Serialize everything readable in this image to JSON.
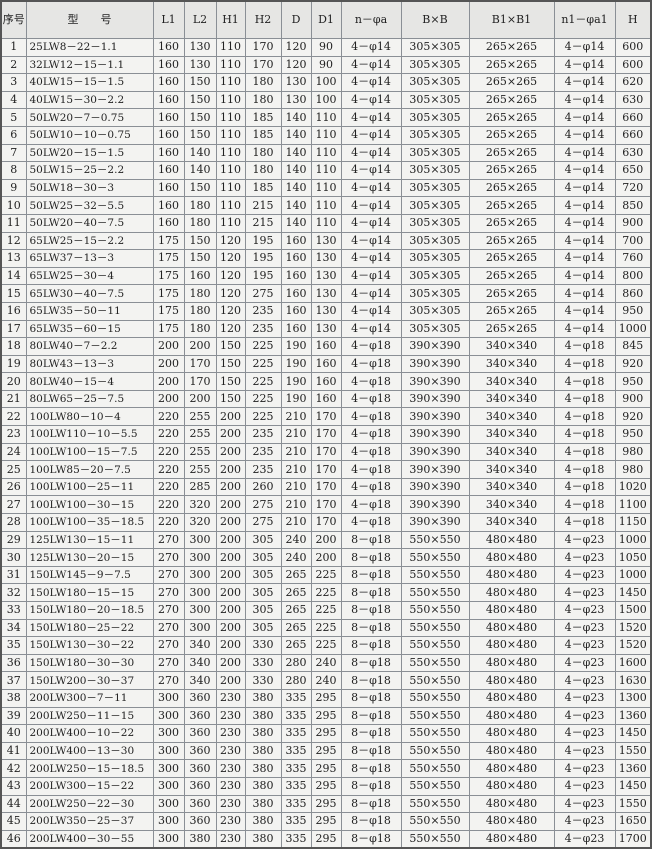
{
  "headers": [
    "序号",
    "型　　号",
    "L1",
    "L2",
    "H1",
    "H2",
    "D",
    "D1",
    "n－φa",
    "B×B",
    "B1×B1",
    "n1－φa1",
    "H"
  ],
  "rows": [
    [
      "1",
      "25LW8－22－1.1",
      "160",
      "130",
      "110",
      "170",
      "120",
      "90",
      "4－φ14",
      "305×305",
      "265×265",
      "4－φ14",
      "600"
    ],
    [
      "2",
      "32LW12－15－1.1",
      "160",
      "130",
      "110",
      "170",
      "120",
      "90",
      "4－φ14",
      "305×305",
      "265×265",
      "4－φ14",
      "600"
    ],
    [
      "3",
      "40LW15－15－1.5",
      "160",
      "150",
      "110",
      "180",
      "130",
      "100",
      "4－φ14",
      "305×305",
      "265×265",
      "4－φ14",
      "620"
    ],
    [
      "4",
      "40LW15－30－2.2",
      "160",
      "150",
      "110",
      "180",
      "130",
      "100",
      "4－φ14",
      "305×305",
      "265×265",
      "4－φ14",
      "630"
    ],
    [
      "5",
      "50LW20－7－0.75",
      "160",
      "150",
      "110",
      "185",
      "140",
      "110",
      "4－φ14",
      "305×305",
      "265×265",
      "4－φ14",
      "660"
    ],
    [
      "6",
      "50LW10－10－0.75",
      "160",
      "150",
      "110",
      "185",
      "140",
      "110",
      "4－φ14",
      "305×305",
      "265×265",
      "4－φ14",
      "660"
    ],
    [
      "7",
      "50LW20－15－1.5",
      "160",
      "140",
      "110",
      "180",
      "140",
      "110",
      "4－φ14",
      "305×305",
      "265×265",
      "4－φ14",
      "630"
    ],
    [
      "8",
      "50LW15－25－2.2",
      "160",
      "140",
      "110",
      "180",
      "140",
      "110",
      "4－φ14",
      "305×305",
      "265×265",
      "4－φ14",
      "650"
    ],
    [
      "9",
      "50LW18－30－3",
      "160",
      "150",
      "110",
      "185",
      "140",
      "110",
      "4－φ14",
      "305×305",
      "265×265",
      "4－φ14",
      "720"
    ],
    [
      "10",
      "50LW25－32－5.5",
      "160",
      "180",
      "110",
      "215",
      "140",
      "110",
      "4－φ14",
      "305×305",
      "265×265",
      "4－φ14",
      "850"
    ],
    [
      "11",
      "50LW20－40－7.5",
      "160",
      "180",
      "110",
      "215",
      "140",
      "110",
      "4－φ14",
      "305×305",
      "265×265",
      "4－φ14",
      "900"
    ],
    [
      "12",
      "65LW25－15－2.2",
      "175",
      "150",
      "120",
      "195",
      "160",
      "130",
      "4－φ14",
      "305×305",
      "265×265",
      "4－φ14",
      "700"
    ],
    [
      "13",
      "65LW37－13－3",
      "175",
      "150",
      "120",
      "195",
      "160",
      "130",
      "4－φ14",
      "305×305",
      "265×265",
      "4－φ14",
      "760"
    ],
    [
      "14",
      "65LW25－30－4",
      "175",
      "160",
      "120",
      "195",
      "160",
      "130",
      "4－φ14",
      "305×305",
      "265×265",
      "4－φ14",
      "800"
    ],
    [
      "15",
      "65LW30－40－7.5",
      "175",
      "180",
      "120",
      "275",
      "160",
      "130",
      "4－φ14",
      "305×305",
      "265×265",
      "4－φ14",
      "860"
    ],
    [
      "16",
      "65LW35－50－11",
      "175",
      "180",
      "120",
      "235",
      "160",
      "130",
      "4－φ14",
      "305×305",
      "265×265",
      "4－φ14",
      "950"
    ],
    [
      "17",
      "65LW35－60－15",
      "175",
      "180",
      "120",
      "235",
      "160",
      "130",
      "4－φ14",
      "305×305",
      "265×265",
      "4－φ14",
      "1000"
    ],
    [
      "18",
      "80LW40－7－2.2",
      "200",
      "200",
      "150",
      "225",
      "190",
      "160",
      "4－φ18",
      "390×390",
      "340×340",
      "4－φ18",
      "845"
    ],
    [
      "19",
      "80LW43－13－3",
      "200",
      "170",
      "150",
      "225",
      "190",
      "160",
      "4－φ18",
      "390×390",
      "340×340",
      "4－φ18",
      "920"
    ],
    [
      "20",
      "80LW40－15－4",
      "200",
      "170",
      "150",
      "225",
      "190",
      "160",
      "4－φ18",
      "390×390",
      "340×340",
      "4－φ18",
      "950"
    ],
    [
      "21",
      "80LW65－25－7.5",
      "200",
      "200",
      "150",
      "225",
      "190",
      "160",
      "4－φ18",
      "390×390",
      "340×340",
      "4－φ18",
      "900"
    ],
    [
      "22",
      "100LW80－10－4",
      "220",
      "255",
      "200",
      "225",
      "210",
      "170",
      "4－φ18",
      "390×390",
      "340×340",
      "4－φ18",
      "920"
    ],
    [
      "23",
      "100LW110－10－5.5",
      "220",
      "255",
      "200",
      "235",
      "210",
      "170",
      "4－φ18",
      "390×390",
      "340×340",
      "4－φ18",
      "950"
    ],
    [
      "24",
      "100LW100－15－7.5",
      "220",
      "255",
      "200",
      "235",
      "210",
      "170",
      "4－φ18",
      "390×390",
      "340×340",
      "4－φ18",
      "980"
    ],
    [
      "25",
      "100LW85－20－7.5",
      "220",
      "255",
      "200",
      "235",
      "210",
      "170",
      "4－φ18",
      "390×390",
      "340×340",
      "4－φ18",
      "980"
    ],
    [
      "26",
      "100LW100－25－11",
      "220",
      "285",
      "200",
      "260",
      "210",
      "170",
      "4－φ18",
      "390×390",
      "340×340",
      "4－φ18",
      "1020"
    ],
    [
      "27",
      "100LW100－30－15",
      "220",
      "320",
      "200",
      "275",
      "210",
      "170",
      "4－φ18",
      "390×390",
      "340×340",
      "4－φ18",
      "1100"
    ],
    [
      "28",
      "100LW100－35－18.5",
      "220",
      "320",
      "200",
      "275",
      "210",
      "170",
      "4－φ18",
      "390×390",
      "340×340",
      "4－φ18",
      "1150"
    ],
    [
      "29",
      "125LW130－15－11",
      "270",
      "300",
      "200",
      "305",
      "240",
      "200",
      "8－φ18",
      "550×550",
      "480×480",
      "4－φ23",
      "1000"
    ],
    [
      "30",
      "125LW130－20－15",
      "270",
      "300",
      "200",
      "305",
      "240",
      "200",
      "8－φ18",
      "550×550",
      "480×480",
      "4－φ23",
      "1050"
    ],
    [
      "31",
      "150LW145－9－7.5",
      "270",
      "300",
      "200",
      "305",
      "265",
      "225",
      "8－φ18",
      "550×550",
      "480×480",
      "4－φ23",
      "1000"
    ],
    [
      "32",
      "150LW180－15－15",
      "270",
      "300",
      "200",
      "305",
      "265",
      "225",
      "8－φ18",
      "550×550",
      "480×480",
      "4－φ23",
      "1450"
    ],
    [
      "33",
      "150LW180－20－18.5",
      "270",
      "300",
      "200",
      "305",
      "265",
      "225",
      "8－φ18",
      "550×550",
      "480×480",
      "4－φ23",
      "1500"
    ],
    [
      "34",
      "150LW180－25－22",
      "270",
      "300",
      "200",
      "305",
      "265",
      "225",
      "8－φ18",
      "550×550",
      "480×480",
      "4－φ23",
      "1520"
    ],
    [
      "35",
      "150LW130－30－22",
      "270",
      "340",
      "200",
      "330",
      "265",
      "225",
      "8－φ18",
      "550×550",
      "480×480",
      "4－φ23",
      "1520"
    ],
    [
      "36",
      "150LW180－30－30",
      "270",
      "340",
      "200",
      "330",
      "280",
      "240",
      "8－φ18",
      "550×550",
      "480×480",
      "4－φ23",
      "1600"
    ],
    [
      "37",
      "150LW200－30－37",
      "270",
      "340",
      "200",
      "330",
      "280",
      "240",
      "8－φ18",
      "550×550",
      "480×480",
      "4－φ23",
      "1630"
    ],
    [
      "38",
      "200LW300－7－11",
      "300",
      "360",
      "230",
      "380",
      "335",
      "295",
      "8－φ18",
      "550×550",
      "480×480",
      "4－φ23",
      "1300"
    ],
    [
      "39",
      "200LW250－11－15",
      "300",
      "360",
      "230",
      "380",
      "335",
      "295",
      "8－φ18",
      "550×550",
      "480×480",
      "4－φ23",
      "1360"
    ],
    [
      "40",
      "200LW400－10－22",
      "300",
      "360",
      "230",
      "380",
      "335",
      "295",
      "8－φ18",
      "550×550",
      "480×480",
      "4－φ23",
      "1450"
    ],
    [
      "41",
      "200LW400－13－30",
      "300",
      "360",
      "230",
      "380",
      "335",
      "295",
      "8－φ18",
      "550×550",
      "480×480",
      "4－φ23",
      "1550"
    ],
    [
      "42",
      "200LW250－15－18.5",
      "300",
      "360",
      "230",
      "380",
      "335",
      "295",
      "8－φ18",
      "550×550",
      "480×480",
      "4－φ23",
      "1360"
    ],
    [
      "43",
      "200LW300－15－22",
      "300",
      "360",
      "230",
      "380",
      "335",
      "295",
      "8－φ18",
      "550×550",
      "480×480",
      "4－φ23",
      "1450"
    ],
    [
      "44",
      "200LW250－22－30",
      "300",
      "360",
      "230",
      "380",
      "335",
      "295",
      "8－φ18",
      "550×550",
      "480×480",
      "4－φ23",
      "1550"
    ],
    [
      "45",
      "200LW350－25－37",
      "300",
      "360",
      "230",
      "380",
      "335",
      "295",
      "8－φ18",
      "550×550",
      "480×480",
      "4－φ23",
      "1650"
    ],
    [
      "46",
      "200LW400－30－55",
      "300",
      "380",
      "230",
      "380",
      "335",
      "295",
      "8－φ18",
      "550×550",
      "480×480",
      "4－φ23",
      "1700"
    ]
  ]
}
